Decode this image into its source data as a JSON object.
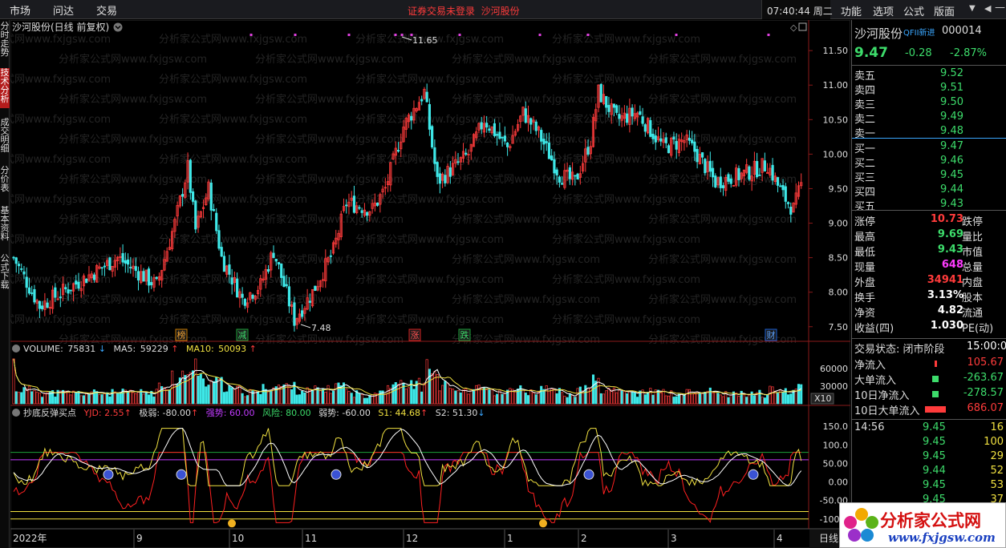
{
  "menubar": {
    "items": [
      "市场",
      "问达",
      "交易"
    ],
    "notice": "证券交易未登录",
    "stock_link": "沙河股份",
    "clock": "07:40:44 周二",
    "right_items": [
      "功能",
      "选项",
      "公式",
      "版面"
    ],
    "controls": [
      "▼",
      "◀",
      "—",
      "×"
    ]
  },
  "leftnav": {
    "tabs": [
      "分时走势",
      "技术分析",
      "成交明细",
      "分价表",
      "基本资料",
      "公式下载"
    ]
  },
  "main_chart": {
    "title": "沙河股份(日线 前复权)",
    "price_ticks": [
      "11.50",
      "11.00",
      "10.50",
      "10.00",
      "9.50",
      "9.00",
      "8.50",
      "8.00",
      "7.50"
    ],
    "high_label": "11.65",
    "low_label": "7.48",
    "markers": [
      {
        "label": "榜",
        "type": "orange"
      },
      {
        "label": "减",
        "type": "green"
      },
      {
        "label": "涨",
        "type": "red"
      },
      {
        "label": "跌",
        "type": "green"
      },
      {
        "label": "财",
        "type": "blue"
      }
    ],
    "watermark": "分析家公式网www.fxjgsw.com"
  },
  "volume": {
    "title": "VOLUME:",
    "value": "75831",
    "ma5_label": "MA5:",
    "ma5": "59229",
    "ma10_label": "MA10:",
    "ma10": "50093",
    "ticks": [
      "60000",
      "30000"
    ],
    "unit": "X10"
  },
  "indicator": {
    "name": "抄底反弹买点",
    "yjd": "YJD: 2.55",
    "jiruo": "极弱: -80.00",
    "qiangshi": "强势: 60.00",
    "fengxian": "风险: 80.00",
    "ruoshi": "弱势: -60.00",
    "s1": "S1: 44.68",
    "s2": "S2: 51.30",
    "ticks": [
      "150.0",
      "100.0",
      "50.00",
      "0.00",
      "-50.00",
      "-100.0"
    ]
  },
  "xaxis": {
    "labels": [
      "2022年",
      "9",
      "10",
      "11",
      "12",
      "1",
      "2",
      "3",
      "4"
    ],
    "period": "日线"
  },
  "chart_data": {
    "type": "candlestick",
    "ylim": [
      7.3,
      11.85
    ],
    "high": 11.65,
    "low": 7.48
  },
  "quote": {
    "name": "沙河股份",
    "tag": "QFII新进",
    "code": "000014",
    "price": "9.47",
    "change": "-0.28",
    "pct": "-2.87%",
    "asks": [
      {
        "label": "卖五",
        "price": "9.52"
      },
      {
        "label": "卖四",
        "price": "9.51"
      },
      {
        "label": "卖三",
        "price": "9.50"
      },
      {
        "label": "卖二",
        "price": "9.49"
      },
      {
        "label": "卖一",
        "price": "9.48"
      }
    ],
    "bids": [
      {
        "label": "买一",
        "price": "9.47"
      },
      {
        "label": "买二",
        "price": "9.46"
      },
      {
        "label": "买三",
        "price": "9.45"
      },
      {
        "label": "买四",
        "price": "9.44"
      },
      {
        "label": "买五",
        "price": "9.43"
      }
    ],
    "stats": [
      {
        "l": "涨停",
        "v": "10.73",
        "r": "跌停",
        "c": "red"
      },
      {
        "l": "最高",
        "v": "9.69",
        "r": "量比",
        "c": "green"
      },
      {
        "l": "最低",
        "v": "9.43",
        "r": "市值",
        "c": "green"
      },
      {
        "l": "现量",
        "v": "648",
        "r": "总量",
        "c": "magenta"
      },
      {
        "l": "外盘",
        "v": "34941",
        "r": "内盘",
        "c": "red"
      },
      {
        "l": "换手",
        "v": "3.13%",
        "r": "股本",
        "c": "white"
      },
      {
        "l": "净资",
        "v": "4.82",
        "r": "流通",
        "c": "white"
      },
      {
        "l": "收益(四)",
        "v": "1.030",
        "r": "PE(动)",
        "c": "white"
      }
    ],
    "trade_status": "交易状态: 闭市阶段",
    "trade_time": "15:00:0",
    "flows": [
      {
        "l": "净流入",
        "v": "105.67",
        "c": "red",
        "bar": 3
      },
      {
        "l": "大单流入",
        "v": "-263.67",
        "c": "green",
        "bar": 8
      },
      {
        "l": "10日净流入",
        "v": "-278.57",
        "c": "green",
        "bar": 8
      },
      {
        "l": "10日大单流入",
        "v": "686.07",
        "c": "red",
        "bar": 26
      }
    ],
    "ticks": [
      {
        "t": "14:56",
        "p": "9.45",
        "v": "16",
        "vc": "yellow"
      },
      {
        "t": "",
        "p": "9.45",
        "v": "100",
        "vc": "yellow"
      },
      {
        "t": "",
        "p": "9.45",
        "v": "29",
        "vc": "yellow"
      },
      {
        "t": "",
        "p": "9.44",
        "v": "52",
        "vc": "yellow"
      },
      {
        "t": "",
        "p": "9.45",
        "v": "53",
        "vc": "yellow"
      },
      {
        "t": "",
        "p": "9.45",
        "v": "37",
        "vc": "yellow"
      }
    ]
  },
  "logo": {
    "line1": "分析家公式网",
    "line2": "www.fxjgsw.com"
  }
}
